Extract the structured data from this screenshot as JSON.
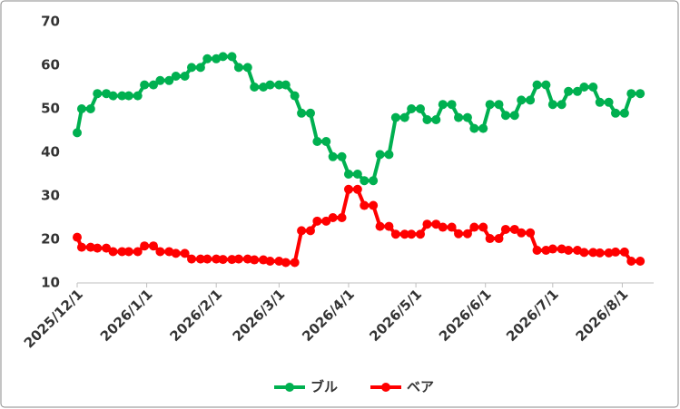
{
  "chart_data": {
    "type": "line",
    "x": [
      "2025/12/1",
      "2025/12/3",
      "2025/12/7",
      "2025/12/10",
      "2025/12/14",
      "2025/12/17",
      "2025/12/21",
      "2025/12/24",
      "2025/12/28",
      "2025/12/31",
      "2026/1/4",
      "2026/1/7",
      "2026/1/11",
      "2026/1/14",
      "2026/1/18",
      "2026/1/21",
      "2026/1/25",
      "2026/1/28",
      "2026/2/1",
      "2026/2/4",
      "2026/2/8",
      "2026/2/11",
      "2026/2/15",
      "2026/2/18",
      "2026/2/22",
      "2026/2/25",
      "2026/3/1",
      "2026/3/4",
      "2026/3/8",
      "2026/3/11",
      "2026/3/15",
      "2026/3/18",
      "2026/3/22",
      "2026/3/25",
      "2026/3/29",
      "2026/4/1",
      "2026/4/5",
      "2026/4/8",
      "2026/4/12",
      "2026/4/15",
      "2026/4/19",
      "2026/4/22",
      "2026/4/26",
      "2026/4/29",
      "2026/5/3",
      "2026/5/6",
      "2026/5/10",
      "2026/5/13",
      "2026/5/17",
      "2026/5/20",
      "2026/5/24",
      "2026/5/27",
      "2026/5/31",
      "2026/6/3",
      "2026/6/7",
      "2026/6/10",
      "2026/6/14",
      "2026/6/17",
      "2026/6/21",
      "2026/6/24",
      "2026/6/28",
      "2026/7/1",
      "2026/7/5",
      "2026/7/8",
      "2026/7/12",
      "2026/7/15",
      "2026/7/19",
      "2026/7/22",
      "2026/7/26",
      "2026/7/29",
      "2026/8/2",
      "2026/8/5",
      "2026/8/9"
    ],
    "series": [
      {
        "name": "ブル",
        "color": "#00b050",
        "values": [
          44.5,
          50,
          50,
          53.5,
          53.5,
          53,
          53,
          53,
          53,
          55.5,
          55.5,
          56.5,
          56.5,
          57.5,
          57.5,
          59.5,
          59.5,
          61.5,
          61.5,
          62,
          62,
          59.5,
          59.5,
          55,
          55,
          55.5,
          55.5,
          55.5,
          53,
          49,
          49,
          42.5,
          42.5,
          39,
          39,
          35,
          35,
          33.5,
          33.5,
          39.5,
          39.5,
          48,
          48,
          50,
          50,
          47.5,
          47.5,
          51,
          51,
          48,
          48,
          45.5,
          45.5,
          51,
          51,
          48.5,
          48.5,
          52,
          52,
          55.5,
          55.5,
          51,
          51,
          54,
          54,
          55,
          55,
          51.5,
          51.5,
          49,
          49,
          53.5,
          53.5
        ]
      },
      {
        "name": "ベア",
        "color": "#ff0000",
        "values": [
          20.5,
          18.2,
          18.2,
          18,
          18,
          17.2,
          17.2,
          17.2,
          17.2,
          18.5,
          18.5,
          17.2,
          17.2,
          16.8,
          16.8,
          15.5,
          15.5,
          15.5,
          15.5,
          15.4,
          15.4,
          15.5,
          15.5,
          15.3,
          15.3,
          15,
          15,
          14.7,
          14.7,
          22,
          22,
          24.2,
          24.2,
          25,
          25,
          31.5,
          31.5,
          27.8,
          27.8,
          23,
          23,
          21.2,
          21.2,
          21.2,
          21.2,
          23.5,
          23.5,
          22.8,
          22.8,
          21.3,
          21.3,
          22.8,
          22.8,
          20.2,
          20.2,
          22.3,
          22.3,
          21.5,
          21.5,
          17.5,
          17.5,
          17.8,
          17.8,
          17.5,
          17.5,
          17,
          17,
          16.9,
          16.9,
          17.1,
          17.1,
          15,
          15
        ]
      }
    ],
    "xlim": [
      "2025/12/1",
      "2026/8/15"
    ],
    "xticks": [
      "2025/12/1",
      "2026/1/1",
      "2026/2/1",
      "2026/3/1",
      "2026/4/1",
      "2026/5/1",
      "2026/6/1",
      "2026/7/1",
      "2026/8/1"
    ],
    "ylim": [
      10,
      70
    ],
    "yticks": [
      10,
      20,
      30,
      40,
      50,
      60,
      70
    ],
    "grid": false,
    "legend": "bottom"
  }
}
